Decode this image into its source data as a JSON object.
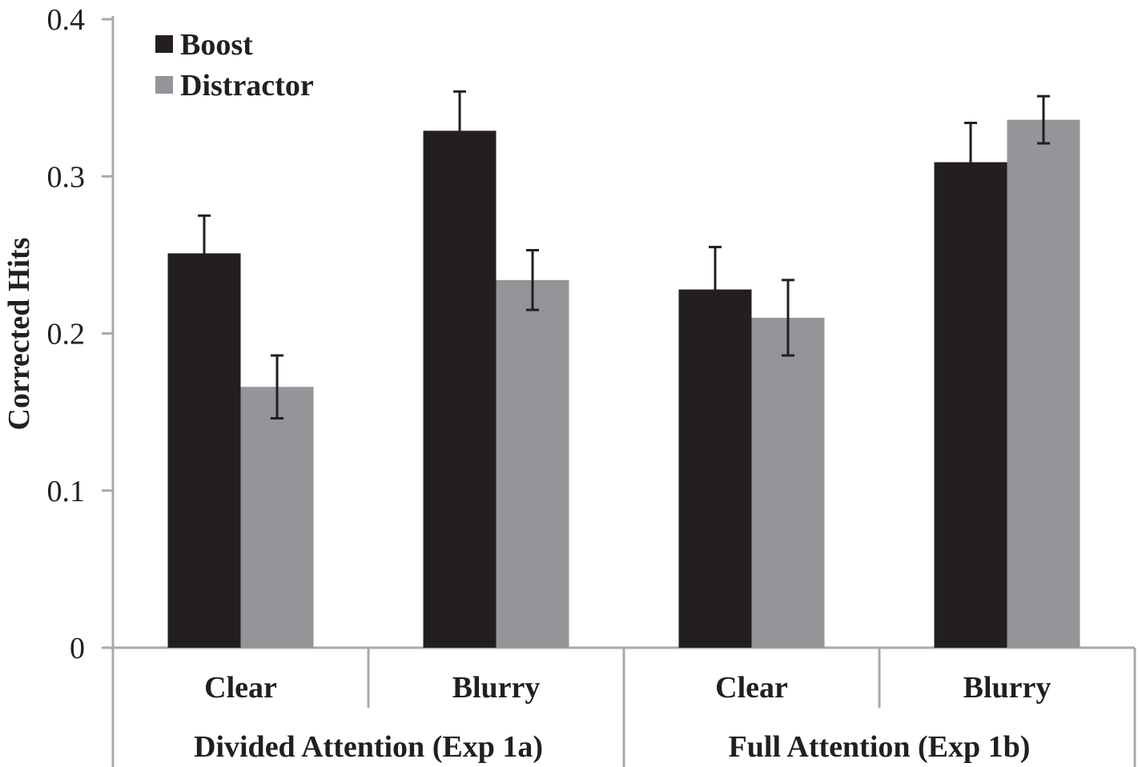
{
  "chart_data": {
    "type": "bar",
    "title": "",
    "ylabel": "Corrected Hits",
    "xlabel": "",
    "ylim": [
      0,
      0.4
    ],
    "yticks": [
      0,
      0.1,
      0.2,
      0.3,
      0.4
    ],
    "ytick_labels": [
      "0",
      "0.1",
      "0.2",
      "0.3",
      "0.4"
    ],
    "gridlines": false,
    "legend_position": "top-left",
    "categories": [
      "Clear",
      "Blurry",
      "Clear",
      "Blurry"
    ],
    "groups": [
      {
        "label": "Divided Attention (Exp 1a)",
        "span": [
          0,
          1
        ]
      },
      {
        "label": "Full Attention (Exp 1b)",
        "span": [
          2,
          3
        ]
      }
    ],
    "series": [
      {
        "name": "Boost",
        "color": "#231f20",
        "values": [
          0.251,
          0.329,
          0.228,
          0.309
        ],
        "errors": [
          0.024,
          0.025,
          0.027,
          0.025
        ]
      },
      {
        "name": "Distractor",
        "color": "#939598",
        "values": [
          0.166,
          0.234,
          0.21,
          0.336
        ],
        "errors": [
          0.02,
          0.019,
          0.024,
          0.015
        ]
      }
    ]
  }
}
